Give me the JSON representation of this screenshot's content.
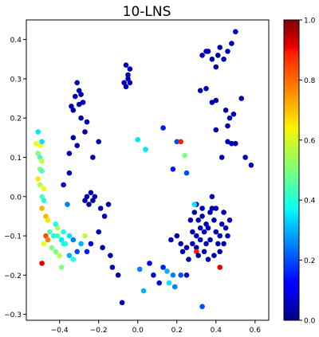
{
  "chart_data": {
    "type": "scatter",
    "title": "10-LNS",
    "xlabel": "",
    "ylabel": "",
    "xlim": [
      -0.57,
      0.67
    ],
    "ylim": [
      -0.315,
      0.45
    ],
    "xticks": [
      -0.4,
      -0.2,
      0.0,
      0.2,
      0.4,
      0.6
    ],
    "xtick_labels": [
      "−0.4",
      "−0.2",
      "0.0",
      "0.2",
      "0.4",
      "0.6"
    ],
    "yticks": [
      -0.3,
      -0.2,
      -0.1,
      0.0,
      0.1,
      0.2,
      0.3,
      0.4
    ],
    "ytick_labels": [
      "−0.3",
      "−0.2",
      "−0.1",
      "0.0",
      "0.1",
      "0.2",
      "0.3",
      "0.4"
    ],
    "grid": false,
    "colormap": "jet",
    "colorbar": {
      "range": [
        0.0,
        1.0
      ],
      "ticks": [
        0.0,
        0.2,
        0.4,
        0.6,
        0.8,
        1.0
      ],
      "tick_labels": [
        "0.0",
        "0.2",
        "0.4",
        "0.6",
        "0.8",
        "1.0"
      ]
    },
    "points": [
      [
        -0.51,
        0.165,
        0.35
      ],
      [
        -0.52,
        0.135,
        0.6
      ],
      [
        -0.5,
        0.13,
        0.62
      ],
      [
        -0.49,
        0.14,
        0.35
      ],
      [
        -0.51,
        0.11,
        0.5
      ],
      [
        -0.5,
        0.1,
        0.45
      ],
      [
        -0.49,
        0.09,
        0.55
      ],
      [
        -0.5,
        0.07,
        0.5
      ],
      [
        -0.49,
        0.065,
        0.45
      ],
      [
        -0.51,
        0.045,
        0.65
      ],
      [
        -0.5,
        0.03,
        0.55
      ],
      [
        -0.48,
        0.02,
        0.6
      ],
      [
        -0.49,
        0.0,
        0.45
      ],
      [
        -0.48,
        -0.01,
        0.4
      ],
      [
        -0.49,
        -0.03,
        0.7
      ],
      [
        -0.47,
        -0.05,
        0.7
      ],
      [
        -0.46,
        -0.06,
        0.65
      ],
      [
        -0.45,
        -0.09,
        0.45
      ],
      [
        -0.47,
        -0.1,
        0.8
      ],
      [
        -0.46,
        -0.11,
        0.75
      ],
      [
        -0.48,
        -0.12,
        0.6
      ],
      [
        -0.44,
        -0.13,
        0.5
      ],
      [
        -0.42,
        -0.14,
        0.5
      ],
      [
        -0.4,
        -0.15,
        0.55
      ],
      [
        -0.39,
        -0.18,
        0.5
      ],
      [
        -0.43,
        -0.1,
        0.4
      ],
      [
        -0.41,
        -0.1,
        0.45
      ],
      [
        -0.41,
        -0.08,
        0.55
      ],
      [
        -0.39,
        -0.11,
        0.35
      ],
      [
        -0.37,
        -0.12,
        0.4
      ],
      [
        -0.35,
        -0.1,
        0.35
      ],
      [
        -0.33,
        -0.11,
        0.25
      ],
      [
        -0.31,
        -0.14,
        0.2
      ],
      [
        -0.35,
        -0.15,
        0.3
      ],
      [
        -0.33,
        -0.16,
        0.4
      ],
      [
        -0.29,
        -0.12,
        0.3
      ],
      [
        -0.27,
        -0.1,
        0.55
      ],
      [
        -0.26,
        -0.14,
        0.15
      ],
      [
        -0.24,
        -0.12,
        0.1
      ],
      [
        -0.38,
        -0.12,
        0.4
      ],
      [
        -0.49,
        -0.17,
        0.9
      ],
      [
        -0.42,
        -0.07,
        0.4
      ],
      [
        -0.38,
        -0.09,
        0.4
      ],
      [
        -0.36,
        -0.02,
        0.25
      ],
      [
        -0.35,
        0.06,
        0.05
      ],
      [
        -0.38,
        0.03,
        0.05
      ],
      [
        -0.35,
        0.11,
        0.05
      ],
      [
        -0.33,
        0.15,
        0.05
      ],
      [
        -0.31,
        0.13,
        0.05
      ],
      [
        -0.27,
        0.165,
        0.05
      ],
      [
        -0.26,
        0.19,
        0.05
      ],
      [
        -0.23,
        0.1,
        0.05
      ],
      [
        -0.2,
        0.14,
        0.05
      ],
      [
        -0.34,
        0.23,
        0.05
      ],
      [
        -0.32,
        0.255,
        0.05
      ],
      [
        -0.3,
        0.27,
        0.05
      ],
      [
        -0.31,
        0.29,
        0.05
      ],
      [
        -0.29,
        0.26,
        0.05
      ],
      [
        -0.28,
        0.24,
        0.05
      ],
      [
        -0.3,
        0.235,
        0.05
      ],
      [
        -0.29,
        0.2,
        0.05
      ],
      [
        -0.33,
        0.22,
        0.05
      ],
      [
        -0.26,
        0.0,
        0.05
      ],
      [
        -0.24,
        0.01,
        0.05
      ],
      [
        -0.23,
        -0.01,
        0.05
      ],
      [
        -0.25,
        -0.02,
        0.05
      ],
      [
        -0.27,
        -0.01,
        0.05
      ],
      [
        -0.22,
        0.0,
        0.05
      ],
      [
        -0.19,
        -0.03,
        0.05
      ],
      [
        -0.17,
        -0.05,
        0.05
      ],
      [
        -0.15,
        -0.02,
        0.05
      ],
      [
        -0.2,
        -0.09,
        0.05
      ],
      [
        -0.18,
        -0.13,
        0.05
      ],
      [
        -0.14,
        -0.15,
        0.05
      ],
      [
        -0.13,
        -0.18,
        0.05
      ],
      [
        -0.1,
        -0.2,
        0.05
      ],
      [
        -0.08,
        -0.27,
        0.05
      ],
      [
        -0.05,
        0.3,
        0.05
      ],
      [
        -0.07,
        0.29,
        0.05
      ],
      [
        -0.05,
        0.31,
        0.05
      ],
      [
        -0.06,
        0.28,
        0.05
      ],
      [
        -0.04,
        0.325,
        0.05
      ],
      [
        -0.06,
        0.335,
        0.05
      ],
      [
        -0.04,
        0.29,
        0.05
      ],
      [
        0.0,
        0.145,
        0.35
      ],
      [
        0.04,
        0.12,
        0.35
      ],
      [
        0.13,
        0.175,
        0.15
      ],
      [
        0.18,
        0.07,
        0.15
      ],
      [
        0.2,
        0.14,
        0.2
      ],
      [
        0.22,
        0.14,
        0.85
      ],
      [
        0.25,
        0.06,
        0.2
      ],
      [
        0.24,
        0.105,
        0.5
      ],
      [
        0.01,
        -0.185,
        0.25
      ],
      [
        0.03,
        -0.24,
        0.3
      ],
      [
        0.06,
        -0.17,
        0.1
      ],
      [
        0.08,
        -0.2,
        0.1
      ],
      [
        0.11,
        -0.22,
        0.1
      ],
      [
        0.13,
        -0.18,
        0.15
      ],
      [
        0.15,
        -0.19,
        0.3
      ],
      [
        0.16,
        -0.22,
        0.35
      ],
      [
        0.18,
        -0.2,
        0.25
      ],
      [
        0.19,
        -0.23,
        0.25
      ],
      [
        0.22,
        -0.2,
        0.2
      ],
      [
        0.25,
        -0.2,
        0.1
      ],
      [
        0.33,
        -0.28,
        0.2
      ],
      [
        0.17,
        -0.11,
        0.05
      ],
      [
        0.2,
        -0.1,
        0.05
      ],
      [
        0.22,
        -0.12,
        0.05
      ],
      [
        0.23,
        -0.14,
        0.05
      ],
      [
        0.25,
        -0.13,
        0.05
      ],
      [
        0.26,
        -0.16,
        0.05
      ],
      [
        0.28,
        -0.09,
        0.05
      ],
      [
        0.27,
        -0.06,
        0.05
      ],
      [
        0.29,
        -0.04,
        0.05
      ],
      [
        0.3,
        -0.02,
        0.05
      ],
      [
        0.31,
        -0.06,
        0.05
      ],
      [
        0.3,
        -0.1,
        0.05
      ],
      [
        0.3,
        -0.13,
        0.05
      ],
      [
        0.32,
        -0.11,
        0.05
      ],
      [
        0.32,
        -0.08,
        0.05
      ],
      [
        0.33,
        -0.05,
        0.05
      ],
      [
        0.33,
        -0.03,
        0.05
      ],
      [
        0.34,
        -0.09,
        0.05
      ],
      [
        0.35,
        -0.12,
        0.05
      ],
      [
        0.36,
        -0.08,
        0.05
      ],
      [
        0.37,
        -0.04,
        0.05
      ],
      [
        0.38,
        0.0,
        0.05
      ],
      [
        0.39,
        -0.06,
        0.05
      ],
      [
        0.4,
        -0.03,
        0.05
      ],
      [
        0.4,
        -0.09,
        0.05
      ],
      [
        0.41,
        -0.12,
        0.05
      ],
      [
        0.42,
        -0.1,
        0.05
      ],
      [
        0.43,
        -0.07,
        0.05
      ],
      [
        0.44,
        -0.04,
        0.05
      ],
      [
        0.45,
        -0.08,
        0.05
      ],
      [
        0.46,
        -0.1,
        0.05
      ],
      [
        0.47,
        -0.06,
        0.05
      ],
      [
        0.28,
        -0.12,
        0.05
      ],
      [
        0.3,
        -0.14,
        0.85
      ],
      [
        0.31,
        -0.15,
        0.05
      ],
      [
        0.34,
        -0.14,
        0.05
      ],
      [
        0.36,
        -0.16,
        0.05
      ],
      [
        0.39,
        -0.15,
        0.05
      ],
      [
        0.42,
        -0.18,
        0.9
      ],
      [
        0.42,
        -0.14,
        0.05
      ],
      [
        0.44,
        -0.12,
        0.05
      ],
      [
        0.29,
        -0.02,
        0.35
      ],
      [
        0.35,
        -0.07,
        0.05
      ],
      [
        0.38,
        -0.03,
        0.05
      ],
      [
        0.37,
        -0.11,
        0.05
      ],
      [
        0.35,
        0.37,
        0.05
      ],
      [
        0.33,
        0.36,
        0.05
      ],
      [
        0.36,
        0.37,
        0.05
      ],
      [
        0.38,
        0.35,
        0.05
      ],
      [
        0.4,
        0.33,
        0.05
      ],
      [
        0.41,
        0.36,
        0.05
      ],
      [
        0.42,
        0.38,
        0.05
      ],
      [
        0.44,
        0.35,
        0.05
      ],
      [
        0.46,
        0.37,
        0.05
      ],
      [
        0.48,
        0.39,
        0.05
      ],
      [
        0.5,
        0.42,
        0.05
      ],
      [
        0.32,
        0.27,
        0.05
      ],
      [
        0.35,
        0.275,
        0.05
      ],
      [
        0.38,
        0.24,
        0.05
      ],
      [
        0.4,
        0.245,
        0.05
      ],
      [
        0.45,
        0.22,
        0.05
      ],
      [
        0.47,
        0.2,
        0.05
      ],
      [
        0.49,
        0.21,
        0.05
      ],
      [
        0.53,
        0.25,
        0.05
      ],
      [
        0.4,
        0.17,
        0.05
      ],
      [
        0.43,
        0.1,
        0.05
      ],
      [
        0.46,
        0.18,
        0.05
      ],
      [
        0.48,
        0.135,
        0.05
      ],
      [
        0.5,
        0.135,
        0.05
      ],
      [
        0.55,
        0.1,
        0.05
      ],
      [
        0.58,
        0.08,
        0.05
      ],
      [
        0.46,
        0.14,
        0.05
      ]
    ]
  }
}
